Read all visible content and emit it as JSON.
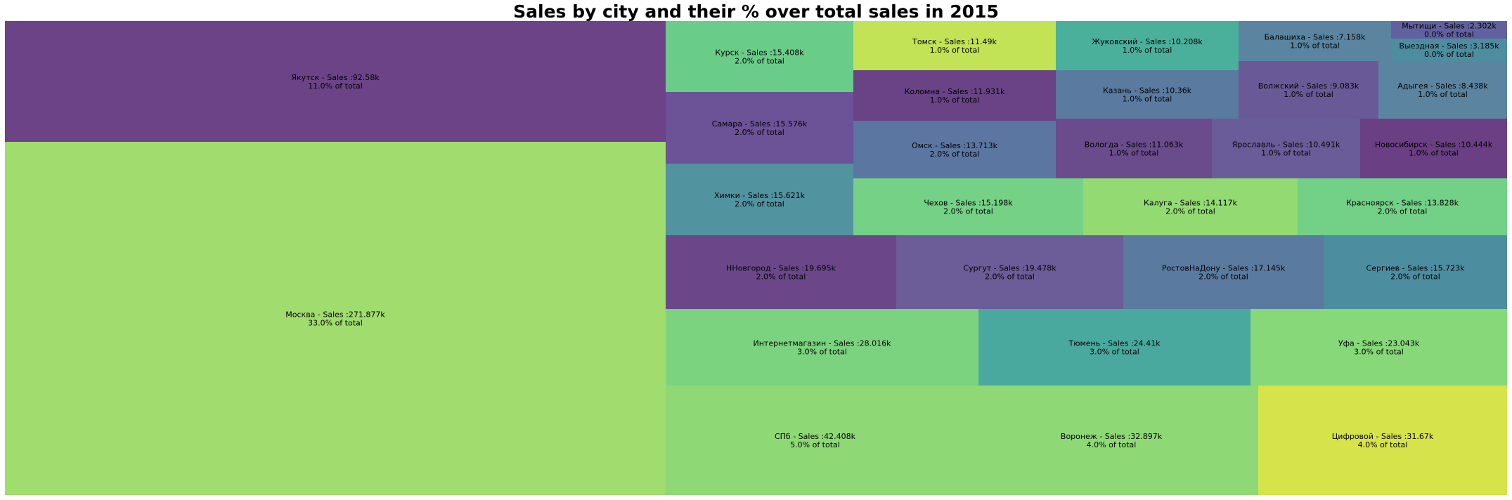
{
  "chart_data": {
    "type": "treemap",
    "title": "Sales by city and their % over total sales in 2015",
    "tiles": [
      {
        "label": "Москва - Sales :271.877k",
        "pct": "33.0% of total",
        "value": 271.877,
        "color": "#a0dc6e"
      },
      {
        "label": "Якутск - Sales :92.58k",
        "pct": "11.0% of total",
        "value": 92.58,
        "color": "#6b4386"
      },
      {
        "label": "СПб - Sales :42.408k",
        "pct": "5.0% of total",
        "value": 42.408,
        "color": "#8ed975"
      },
      {
        "label": "Воронеж - Sales :32.897k",
        "pct": "4.0% of total",
        "value": 32.897,
        "color": "#8ed975"
      },
      {
        "label": "Цифровой - Sales :31.67k",
        "pct": "4.0% of total",
        "value": 31.67,
        "color": "#d6e34b"
      },
      {
        "label": "Интернетмагазин - Sales :28.016k",
        "pct": "3.0% of total",
        "value": 28.016,
        "color": "#7cd37f"
      },
      {
        "label": "Тюмень - Sales :24.41k",
        "pct": "3.0% of total",
        "value": 24.41,
        "color": "#4aa99e"
      },
      {
        "label": "Уфа - Sales :23.043k",
        "pct": "3.0% of total",
        "value": 23.043,
        "color": "#86d879"
      },
      {
        "label": "ННовгород - Sales :19.695k",
        "pct": "2.0% of total",
        "value": 19.695,
        "color": "#6b4789"
      },
      {
        "label": "Сургут - Sales :19.478k",
        "pct": "2.0% of total",
        "value": 19.478,
        "color": "#6c5c98"
      },
      {
        "label": "РостовНаДону - Sales :17.145k",
        "pct": "2.0% of total",
        "value": 17.145,
        "color": "#5a7aa0"
      },
      {
        "label": "Сергиев - Sales :15.723k",
        "pct": "2.0% of total",
        "value": 15.723,
        "color": "#4d8da0"
      },
      {
        "label": "Курск - Sales :15.408k",
        "pct": "2.0% of total",
        "value": 15.408,
        "color": "#6acc89"
      },
      {
        "label": "Самара - Sales :15.576k",
        "pct": "2.0% of total",
        "value": 15.576,
        "color": "#6c5296"
      },
      {
        "label": "Химки - Sales :15.621k",
        "pct": "2.0% of total",
        "value": 15.621,
        "color": "#5293a0"
      },
      {
        "label": "Чехов - Sales :15.198k",
        "pct": "2.0% of total",
        "value": 15.198,
        "color": "#74d186"
      },
      {
        "label": "Калуга - Sales :14.117k",
        "pct": "2.0% of total",
        "value": 14.117,
        "color": "#94da73"
      },
      {
        "label": "Красноярск - Sales :13.828k",
        "pct": "2.0% of total",
        "value": 13.828,
        "color": "#72d087"
      },
      {
        "label": "Томск - Sales :11.49k",
        "pct": "1.0% of total",
        "value": 11.49,
        "color": "#c1e355"
      },
      {
        "label": "Коломна - Sales :11.931k",
        "pct": "1.0% of total",
        "value": 11.931,
        "color": "#6a4386"
      },
      {
        "label": "Омск - Sales :13.713k",
        "pct": "2.0% of total",
        "value": 13.713,
        "color": "#5b76a0"
      },
      {
        "label": "Жуковский - Sales :10.208k",
        "pct": "1.0% of total",
        "value": 10.208,
        "color": "#4ab09b"
      },
      {
        "label": "Казань - Sales :10.36k",
        "pct": "1.0% of total",
        "value": 10.36,
        "color": "#5a7aa0"
      },
      {
        "label": "Вологда - Sales :11.063k",
        "pct": "1.0% of total",
        "value": 11.063,
        "color": "#6a4b8c"
      },
      {
        "label": "Ярославль - Sales :10.491k",
        "pct": "1.0% of total",
        "value": 10.491,
        "color": "#6a5c98"
      },
      {
        "label": "Новосибирск - Sales :10.444k",
        "pct": "1.0% of total",
        "value": 10.444,
        "color": "#6a3f83"
      },
      {
        "label": "Балашиха - Sales :7.158k",
        "pct": "1.0% of total",
        "value": 7.158,
        "color": "#5a849f"
      },
      {
        "label": "Волжский - Sales :9.083k",
        "pct": "1.0% of total",
        "value": 9.083,
        "color": "#695a97"
      },
      {
        "label": "Адыгея - Sales :8.438k",
        "pct": "1.0% of total",
        "value": 8.438,
        "color": "#5a849f"
      },
      {
        "label": "Мытищи - Sales :2.302k",
        "pct": "0.0% of total",
        "value": 2.302,
        "color": "#6261a0"
      },
      {
        "label": "Выездная - Sales :3.185k",
        "pct": "0.0% of total",
        "value": 3.185,
        "color": "#4d8da0"
      }
    ]
  }
}
